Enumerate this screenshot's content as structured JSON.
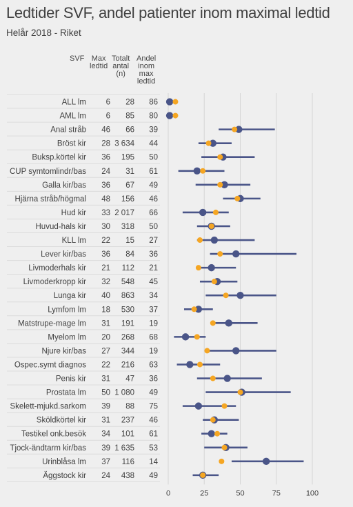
{
  "title": "Ledtider SVF, andel patienter inom maximal ledtid",
  "subtitle": "Helår 2018 - Riket",
  "table_headers": {
    "svf": "SVF",
    "max_ledtid": [
      "Max",
      "ledtid"
    ],
    "totalt_antal": [
      "Totalt",
      "antal",
      "(n)"
    ],
    "andel": [
      "Andel",
      "inom",
      "max",
      "ledtid"
    ]
  },
  "colors": {
    "background": "#efefef",
    "line_and_median": "#4a5588",
    "target_dot": "#f5a623",
    "grid": "#d6d6d6",
    "row_separator": "#dcdcdc"
  },
  "chart_data": {
    "type": "dot-range",
    "x_ticks": [
      0,
      25,
      50,
      75,
      100
    ],
    "xlim": [
      0,
      100
    ],
    "rows": [
      {
        "svf": "ALL lm",
        "max": 6,
        "n": "28",
        "andel": 86,
        "low": null,
        "high": null,
        "median": 1,
        "target": 5
      },
      {
        "svf": "AML lm",
        "max": 6,
        "n": "85",
        "andel": 80,
        "low": null,
        "high": null,
        "median": 1,
        "target": 5
      },
      {
        "svf": "Anal stråb",
        "max": 46,
        "n": "66",
        "andel": 39,
        "low": 35,
        "high": 74,
        "median": 49,
        "target": 46
      },
      {
        "svf": "Bröst kir",
        "max": 28,
        "n": "3 634",
        "andel": 44,
        "low": 21,
        "high": 44,
        "median": 31,
        "target": 28
      },
      {
        "svf": "Buksp.körtel kir",
        "max": 36,
        "n": "195",
        "andel": 50,
        "low": 23,
        "high": 60,
        "median": 38,
        "target": 36
      },
      {
        "svf": "CUP symtomlindr/bas",
        "max": 24,
        "n": "31",
        "andel": 61,
        "low": 7,
        "high": 39,
        "median": 20,
        "target": 24
      },
      {
        "svf": "Galla kir/bas",
        "max": 36,
        "n": "67",
        "andel": 49,
        "low": 19,
        "high": 57,
        "median": 39,
        "target": 36
      },
      {
        "svf": "Hjärna stråb/högmal",
        "max": 48,
        "n": "156",
        "andel": 46,
        "low": 38,
        "high": 64,
        "median": 50,
        "target": 48
      },
      {
        "svf": "Hud kir",
        "max": 33,
        "n": "2 017",
        "andel": 66,
        "low": 10,
        "high": 42,
        "median": 24,
        "target": 33
      },
      {
        "svf": "Huvud-hals kir",
        "max": 30,
        "n": "318",
        "andel": 50,
        "low": 20,
        "high": 43,
        "median": 30,
        "target": 30
      },
      {
        "svf": "KLL lm",
        "max": 22,
        "n": "15",
        "andel": 27,
        "low": 20,
        "high": 60,
        "median": 32,
        "target": 22
      },
      {
        "svf": "Lever kir/bas",
        "max": 36,
        "n": "84",
        "andel": 36,
        "low": 29,
        "high": 89,
        "median": 47,
        "target": 36
      },
      {
        "svf": "Livmoderhals kir",
        "max": 21,
        "n": "112",
        "andel": 21,
        "low": 20,
        "high": 47,
        "median": 30,
        "target": 21
      },
      {
        "svf": "Livmoderkropp kir",
        "max": 32,
        "n": "548",
        "andel": 45,
        "low": 22,
        "high": 48,
        "median": 34,
        "target": 32
      },
      {
        "svf": "Lunga kir",
        "max": 40,
        "n": "863",
        "andel": 34,
        "low": 26,
        "high": 75,
        "median": 50,
        "target": 40
      },
      {
        "svf": "Lymfom lm",
        "max": 18,
        "n": "530",
        "andel": 37,
        "low": 11,
        "high": 31,
        "median": 21,
        "target": 18
      },
      {
        "svf": "Matstrupe-mage lm",
        "max": 31,
        "n": "191",
        "andel": 19,
        "low": 31,
        "high": 62,
        "median": 42,
        "target": 31
      },
      {
        "svf": "Myelom lm",
        "max": 20,
        "n": "268",
        "andel": 68,
        "low": 4,
        "high": 26,
        "median": 12,
        "target": 20
      },
      {
        "svf": "Njure kir/bas",
        "max": 27,
        "n": "344",
        "andel": 19,
        "low": 27,
        "high": 75,
        "median": 47,
        "target": 27
      },
      {
        "svf": "Ospec.symt diagnos",
        "max": 22,
        "n": "216",
        "andel": 63,
        "low": 6,
        "high": 36,
        "median": 15,
        "target": 22
      },
      {
        "svf": "Penis kir",
        "max": 31,
        "n": "47",
        "andel": 36,
        "low": 20,
        "high": 65,
        "median": 41,
        "target": 31
      },
      {
        "svf": "Prostata lm",
        "max": 50,
        "n": "1 080",
        "andel": 49,
        "low": 26,
        "high": 85,
        "median": 51,
        "target": 50
      },
      {
        "svf": "Skelett-mjukd.sarkom",
        "max": 39,
        "n": "88",
        "andel": 75,
        "low": 10,
        "high": 47,
        "median": 21,
        "target": 39
      },
      {
        "svf": "Sköldkörtel kir",
        "max": 31,
        "n": "237",
        "andel": 46,
        "low": 24,
        "high": 49,
        "median": 32,
        "target": 31
      },
      {
        "svf": "Testikel onk.besök",
        "max": 34,
        "n": "101",
        "andel": 61,
        "low": 23,
        "high": 41,
        "median": 30,
        "target": 34
      },
      {
        "svf": "Tjock-ändtarm kir/bas",
        "max": 39,
        "n": "1 635",
        "andel": 53,
        "low": 25,
        "high": 55,
        "median": 40,
        "target": 39
      },
      {
        "svf": "Urinblåsa lm",
        "max": 37,
        "n": "116",
        "andel": 14,
        "low": 44,
        "high": 94,
        "median": 68,
        "target": 37
      },
      {
        "svf": "Äggstock kir",
        "max": 24,
        "n": "438",
        "andel": 49,
        "low": 17,
        "high": 35,
        "median": 24,
        "target": 24
      }
    ]
  }
}
